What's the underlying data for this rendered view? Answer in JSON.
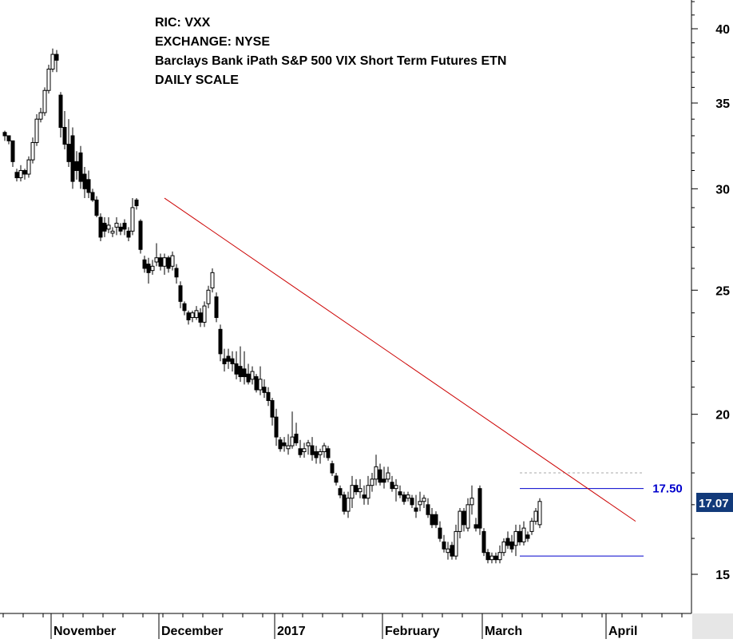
{
  "header": {
    "ric": "RIC: VXX",
    "exchange": "EXCHANGE: NYSE",
    "name": "Barclays Bank iPath S&P 500 VIX Short Term Futures ETN",
    "scale": "DAILY SCALE"
  },
  "chart_data": {
    "type": "candlestick",
    "y_scale": "log",
    "ylim": [
      13.3,
      43
    ],
    "y_ticks": [
      "40",
      "35",
      "30",
      "25",
      "20",
      "15"
    ],
    "x_labels": [
      "November",
      "December",
      "2017",
      "February",
      "March",
      "April"
    ],
    "last_price_label": "17.07",
    "resistance_label": "17.50",
    "levels": {
      "resistance": 17.5,
      "support": 15.5,
      "dashed": 18.0
    },
    "trendline": {
      "start": {
        "session": 40,
        "price": 29.5
      },
      "end": {
        "session": 158,
        "price": 16.5
      }
    },
    "colors": {
      "up": "#ffffff",
      "down": "#000000",
      "trendline": "#cc0000",
      "level": "#0000cc",
      "dashed": "#aaaaaa",
      "label_bg": "#123a7a",
      "label_text": "#0000cc"
    },
    "candles": [
      [
        33.2,
        33.3,
        32.7,
        33.0
      ],
      [
        33.0,
        33.0,
        32.5,
        32.7
      ],
      [
        32.7,
        32.7,
        31.2,
        31.5
      ],
      [
        30.9,
        31.1,
        30.4,
        30.6
      ],
      [
        30.6,
        31.3,
        30.4,
        31.0
      ],
      [
        31.0,
        31.1,
        30.5,
        30.8
      ],
      [
        30.8,
        31.8,
        30.6,
        31.6
      ],
      [
        31.6,
        32.9,
        31.4,
        32.6
      ],
      [
        32.6,
        34.3,
        32.4,
        34.0
      ],
      [
        34.0,
        34.7,
        33.8,
        34.4
      ],
      [
        34.4,
        36.0,
        34.2,
        35.8
      ],
      [
        35.8,
        37.5,
        35.6,
        37.2
      ],
      [
        37.2,
        38.6,
        37.0,
        38.2
      ],
      [
        38.2,
        38.5,
        37.0,
        37.8
      ],
      [
        35.5,
        35.7,
        32.9,
        33.5
      ],
      [
        33.5,
        34.5,
        32.2,
        32.5
      ],
      [
        32.5,
        34.0,
        31.2,
        31.5
      ],
      [
        33.0,
        33.5,
        30.0,
        30.4
      ],
      [
        31.5,
        32.1,
        30.5,
        31.0
      ],
      [
        32.0,
        32.4,
        30.0,
        30.4
      ],
      [
        30.8,
        31.2,
        29.5,
        30.0
      ],
      [
        30.5,
        31.0,
        29.5,
        29.8
      ],
      [
        29.8,
        30.0,
        29.3,
        29.4
      ],
      [
        29.4,
        29.6,
        28.5,
        28.6
      ],
      [
        28.5,
        28.7,
        27.3,
        27.5
      ],
      [
        28.2,
        28.5,
        27.5,
        27.8
      ],
      [
        27.9,
        28.5,
        27.7,
        28.1
      ],
      [
        27.7,
        28.0,
        27.5,
        27.8
      ],
      [
        28.0,
        28.5,
        27.6,
        28.2
      ],
      [
        28.0,
        28.2,
        27.6,
        27.8
      ],
      [
        28.2,
        28.4,
        27.6,
        27.9
      ],
      [
        27.8,
        28.0,
        27.3,
        27.5
      ],
      [
        27.8,
        29.5,
        27.6,
        29.0
      ],
      [
        29.4,
        29.5,
        28.9,
        29.1
      ],
      [
        28.3,
        28.4,
        26.7,
        26.9
      ],
      [
        26.4,
        26.6,
        25.8,
        26.0
      ],
      [
        26.2,
        26.5,
        25.3,
        25.8
      ],
      [
        25.9,
        26.4,
        25.7,
        26.1
      ],
      [
        26.3,
        27.2,
        26.1,
        26.5
      ],
      [
        26.5,
        26.7,
        25.9,
        26.1
      ],
      [
        26.1,
        26.7,
        25.7,
        26.5
      ],
      [
        26.5,
        26.6,
        25.8,
        26.0
      ],
      [
        26.1,
        26.8,
        25.9,
        26.6
      ],
      [
        26.0,
        26.2,
        25.3,
        25.6
      ],
      [
        25.2,
        25.4,
        24.2,
        24.5
      ],
      [
        24.4,
        24.5,
        23.9,
        24.1
      ],
      [
        24.0,
        24.1,
        23.5,
        23.7
      ],
      [
        23.8,
        24.1,
        23.6,
        24.0
      ],
      [
        23.8,
        24.3,
        23.7,
        24.1
      ],
      [
        24.0,
        24.2,
        23.4,
        23.6
      ],
      [
        23.6,
        24.5,
        23.4,
        24.3
      ],
      [
        24.4,
        25.2,
        24.2,
        25.0
      ],
      [
        25.1,
        26.0,
        24.9,
        25.8
      ],
      [
        24.7,
        24.9,
        23.6,
        23.8
      ],
      [
        23.3,
        23.5,
        22.0,
        22.3
      ],
      [
        22.1,
        22.5,
        21.6,
        21.9
      ],
      [
        22.2,
        22.5,
        21.7,
        22.0
      ],
      [
        22.1,
        22.4,
        21.6,
        21.9
      ],
      [
        21.9,
        22.4,
        21.3,
        21.5
      ],
      [
        21.8,
        22.6,
        21.2,
        21.4
      ],
      [
        21.7,
        22.4,
        21.1,
        21.4
      ],
      [
        21.5,
        21.9,
        21.1,
        21.2
      ],
      [
        21.3,
        21.8,
        21.1,
        21.6
      ],
      [
        21.4,
        21.5,
        20.8,
        20.9
      ],
      [
        20.9,
        21.8,
        20.7,
        21.3
      ],
      [
        21.0,
        21.3,
        20.6,
        20.8
      ],
      [
        20.8,
        21.0,
        20.3,
        20.5
      ],
      [
        20.5,
        20.6,
        19.6,
        19.9
      ],
      [
        19.9,
        20.2,
        18.9,
        19.2
      ],
      [
        19.1,
        19.2,
        18.7,
        18.8
      ],
      [
        19.0,
        19.2,
        18.7,
        18.9
      ],
      [
        18.8,
        19.3,
        18.6,
        18.9
      ],
      [
        18.9,
        20.1,
        18.8,
        19.2
      ],
      [
        19.3,
        19.7,
        18.9,
        19.0
      ],
      [
        18.8,
        19.1,
        18.5,
        18.6
      ],
      [
        18.7,
        19.0,
        18.5,
        18.8
      ],
      [
        18.9,
        19.1,
        18.6,
        19.0
      ],
      [
        18.9,
        19.2,
        18.4,
        18.6
      ],
      [
        18.7,
        18.9,
        18.3,
        18.5
      ],
      [
        18.6,
        18.8,
        18.3,
        18.7
      ],
      [
        18.7,
        19.0,
        18.5,
        18.9
      ],
      [
        18.8,
        18.9,
        18.4,
        18.5
      ],
      [
        18.3,
        18.4,
        17.9,
        18.0
      ],
      [
        17.9,
        18.0,
        17.6,
        17.7
      ],
      [
        17.5,
        17.6,
        17.2,
        17.3
      ],
      [
        17.3,
        17.4,
        16.7,
        16.8
      ],
      [
        16.8,
        17.4,
        16.6,
        17.2
      ],
      [
        17.2,
        17.9,
        16.9,
        17.6
      ],
      [
        17.6,
        17.8,
        17.3,
        17.4
      ],
      [
        17.4,
        17.8,
        17.2,
        17.5
      ],
      [
        17.3,
        17.6,
        17.0,
        17.2
      ],
      [
        17.2,
        17.9,
        17.0,
        17.6
      ],
      [
        17.6,
        18.0,
        17.4,
        17.8
      ],
      [
        17.8,
        18.6,
        17.6,
        18.2
      ],
      [
        18.1,
        18.3,
        17.6,
        17.7
      ],
      [
        17.8,
        18.2,
        17.5,
        17.7
      ],
      [
        17.8,
        18.2,
        17.7,
        18.0
      ],
      [
        17.7,
        17.9,
        17.4,
        17.5
      ],
      [
        17.5,
        17.8,
        17.1,
        17.6
      ],
      [
        17.4,
        17.6,
        17.2,
        17.3
      ],
      [
        17.3,
        17.4,
        17.0,
        17.1
      ],
      [
        17.2,
        17.4,
        17.1,
        17.3
      ],
      [
        17.2,
        17.3,
        16.9,
        17.0
      ],
      [
        16.9,
        17.3,
        16.6,
        16.8
      ],
      [
        17.0,
        17.4,
        16.8,
        17.1
      ],
      [
        17.1,
        17.3,
        16.9,
        17.2
      ],
      [
        17.0,
        17.2,
        16.6,
        16.7
      ],
      [
        16.7,
        16.9,
        16.3,
        16.4
      ],
      [
        16.7,
        16.8,
        16.3,
        16.4
      ],
      [
        16.3,
        16.5,
        15.9,
        16.0
      ],
      [
        15.9,
        16.1,
        15.6,
        15.7
      ],
      [
        15.6,
        15.9,
        15.4,
        15.7
      ],
      [
        15.8,
        15.9,
        15.4,
        15.5
      ],
      [
        15.5,
        16.4,
        15.4,
        16.2
      ],
      [
        16.2,
        16.9,
        16.0,
        16.8
      ],
      [
        16.8,
        16.9,
        16.2,
        16.4
      ],
      [
        16.3,
        17.2,
        16.2,
        17.0
      ],
      [
        17.0,
        17.6,
        16.7,
        17.2
      ],
      [
        16.4,
        16.6,
        16.2,
        16.3
      ],
      [
        17.5,
        17.6,
        16.1,
        16.3
      ],
      [
        16.2,
        16.3,
        15.5,
        15.6
      ],
      [
        15.6,
        15.7,
        15.3,
        15.4
      ],
      [
        15.4,
        15.6,
        15.3,
        15.5
      ],
      [
        15.5,
        15.6,
        15.3,
        15.4
      ],
      [
        15.4,
        15.8,
        15.3,
        15.6
      ],
      [
        15.6,
        16.0,
        15.5,
        15.9
      ],
      [
        16.0,
        16.2,
        15.7,
        15.8
      ],
      [
        15.9,
        16.1,
        15.6,
        15.7
      ],
      [
        15.8,
        16.4,
        15.5,
        16.2
      ],
      [
        16.2,
        16.4,
        15.8,
        15.9
      ],
      [
        15.9,
        16.5,
        15.8,
        16.3
      ],
      [
        16.1,
        16.2,
        15.9,
        16.0
      ],
      [
        16.2,
        16.6,
        16.1,
        16.5
      ],
      [
        16.5,
        16.9,
        16.4,
        16.8
      ],
      [
        16.4,
        17.2,
        16.3,
        17.1
      ]
    ]
  }
}
